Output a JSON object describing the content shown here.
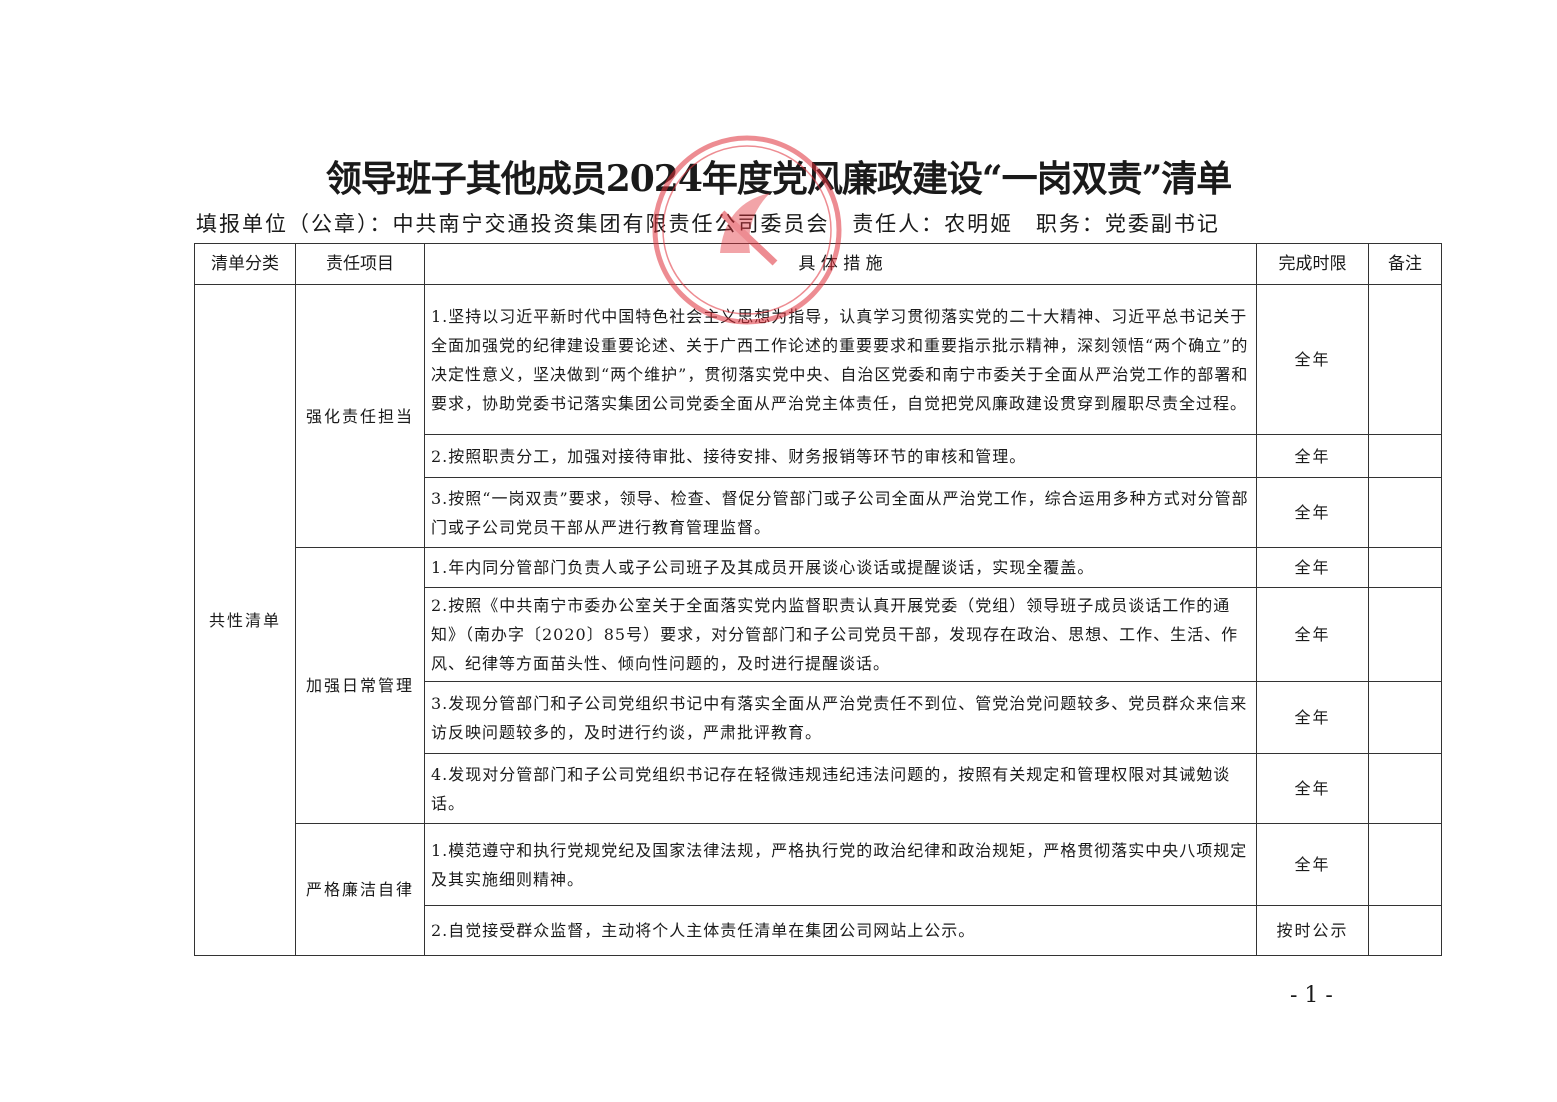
{
  "title": "领导班子其他成员2024年度党风廉政建设“一岗双责”清单",
  "subtitle": {
    "unit": "填报单位（公章）：中共南宁交通投资集团有限责任公司委员会",
    "person": "责任人：农明姬",
    "position": "职务：党委副书记"
  },
  "table": {
    "headers": [
      "清单分类",
      "责任项目",
      "具 体 措 施",
      "完成时限",
      "备注"
    ],
    "category": "共性清单",
    "groups": [
      {
        "item": "强化责任担当",
        "rows": [
          {
            "measure": "1.坚持以习近平新时代中国特色社会主义思想为指导，认真学习贯彻落实党的二十大精神、习近平总书记关于全面加强党的纪律建设重要论述、关于广西工作论述的重要要求和重要指示批示精神，深刻领悟“两个确立”的决定性意义，坚决做到“两个维护”，贯彻落实党中央、自治区党委和南宁市委关于全面从严治党工作的部署和要求，协助党委书记落实集团公司党委全面从严治党主体责任，自觉把党风廉政建设贯穿到履职尽责全过程。",
            "deadline": "全年",
            "note": ""
          },
          {
            "measure": "2.按照职责分工，加强对接待审批、接待安排、财务报销等环节的审核和管理。",
            "deadline": "全年",
            "note": ""
          },
          {
            "measure": "3.按照“一岗双责”要求，领导、检查、督促分管部门或子公司全面从严治党工作，综合运用多种方式对分管部门或子公司党员干部从严进行教育管理监督。",
            "deadline": "全年",
            "note": ""
          }
        ]
      },
      {
        "item": "加强日常管理",
        "rows": [
          {
            "measure": "1.年内同分管部门负责人或子公司班子及其成员开展谈心谈话或提醒谈话，实现全覆盖。",
            "deadline": "全年",
            "note": ""
          },
          {
            "measure": "2.按照《中共南宁市委办公室关于全面落实党内监督职责认真开展党委（党组）领导班子成员谈话工作的通知》（南办字〔2020〕85号）要求，对分管部门和子公司党员干部，发现存在政治、思想、工作、生活、作风、纪律等方面苗头性、倾向性问题的，及时进行提醒谈话。",
            "deadline": "全年",
            "note": ""
          },
          {
            "measure": "3.发现分管部门和子公司党组织书记中有落实全面从严治党责任不到位、管党治党问题较多、党员群众来信来访反映问题较多的，及时进行约谈，严肃批评教育。",
            "deadline": "全年",
            "note": ""
          },
          {
            "measure": "4.发现对分管部门和子公司党组织书记存在轻微违规违纪违法问题的，按照有关规定和管理权限对其诫勉谈话。",
            "deadline": "全年",
            "note": ""
          }
        ]
      },
      {
        "item": "严格廉洁自律",
        "rows": [
          {
            "measure": "1.模范遵守和执行党规党纪及国家法律法规，严格执行党的政治纪律和政治规矩，严格贯彻落实中央八项规定及其实施细则精神。",
            "deadline": "全年",
            "note": ""
          },
          {
            "measure": "2.自觉接受群众监督，主动将个人主体责任清单在集团公司网站上公示。",
            "deadline": "按时公示",
            "note": ""
          }
        ]
      }
    ]
  },
  "stamp": {
    "color": "#e0303a",
    "icon": "party-emblem-seal"
  },
  "page_number": "- 1 -"
}
